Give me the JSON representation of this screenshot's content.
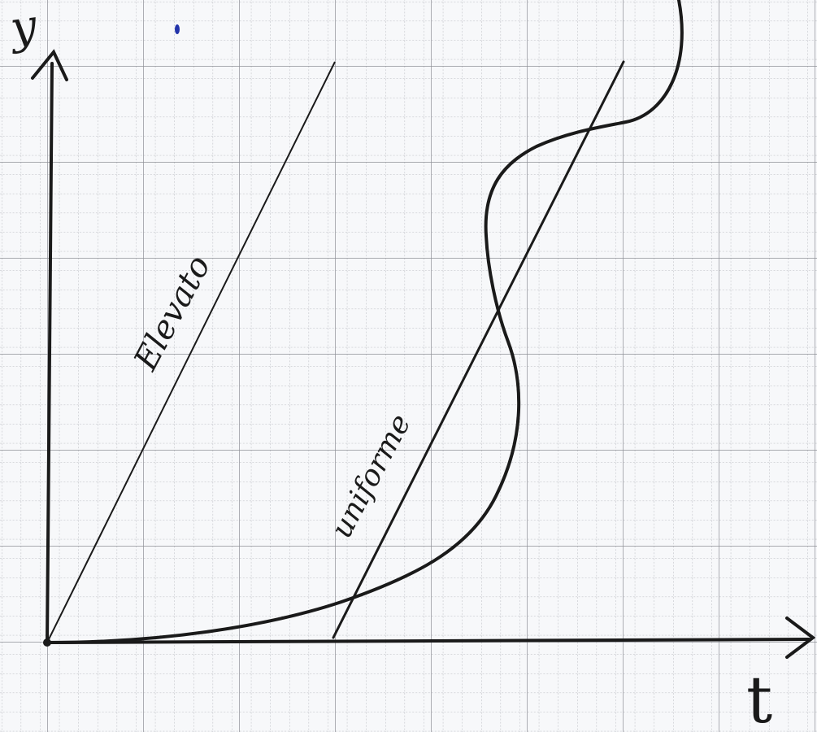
{
  "axes": {
    "y_label": "y",
    "x_label": "t"
  },
  "annotations": {
    "line_left": "Elevato",
    "line_right": "uniforme"
  },
  "colors": {
    "ink": "#1a1a1a",
    "grid_major": "#8d8f96",
    "grid_minor": "#b7b9bf",
    "paper": "#f7f8fa",
    "ink_dot": "#2233aa"
  }
}
